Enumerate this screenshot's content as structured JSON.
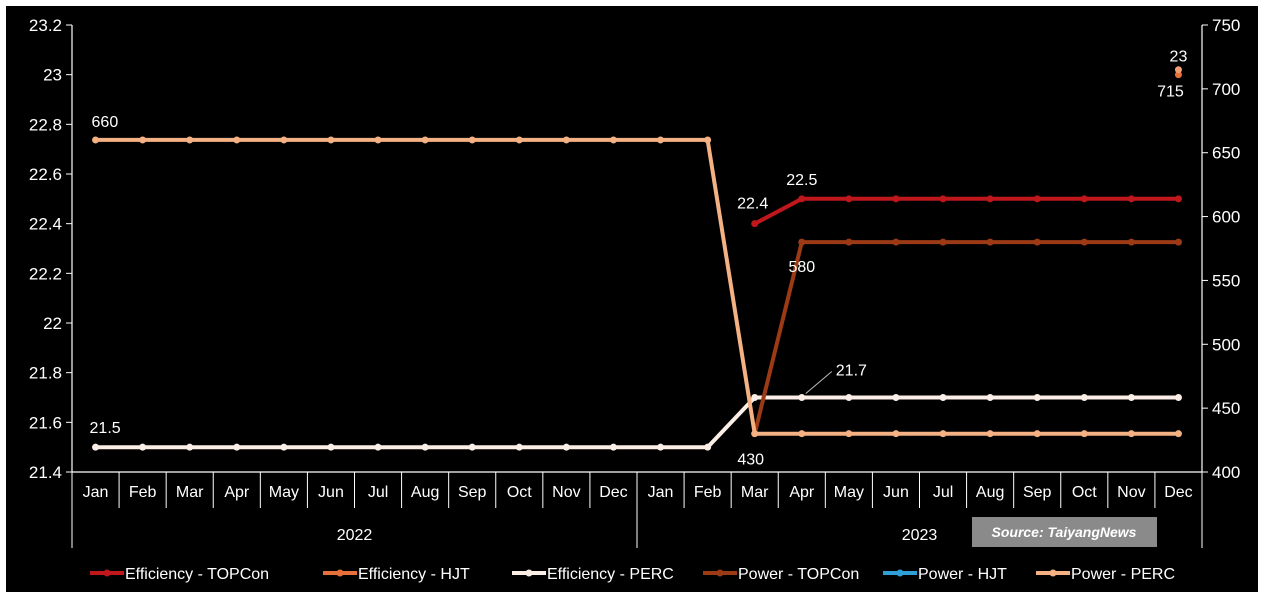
{
  "chart_data": {
    "type": "line",
    "categories": [
      "Jan",
      "Feb",
      "Mar",
      "Apr",
      "May",
      "Jun",
      "Jul",
      "Aug",
      "Sep",
      "Oct",
      "Nov",
      "Dec",
      "Jan",
      "Feb",
      "Mar",
      "Apr",
      "May",
      "Jun",
      "Jul",
      "Aug",
      "Sep",
      "Oct",
      "Nov",
      "Dec"
    ],
    "years": [
      {
        "label": "2022",
        "start": 0,
        "end": 11
      },
      {
        "label": "2023",
        "start": 12,
        "end": 23
      }
    ],
    "y_left": {
      "min": 21.4,
      "max": 23.2,
      "step": 0.2,
      "ticks": [
        "21.4",
        "21.6",
        "21.8",
        "22",
        "22.2",
        "22.4",
        "22.6",
        "22.8",
        "23",
        "23.2"
      ]
    },
    "y_right": {
      "min": 400,
      "max": 750,
      "step": 50,
      "ticks": [
        "400",
        "450",
        "500",
        "550",
        "600",
        "650",
        "700",
        "750"
      ]
    },
    "series": [
      {
        "name": "Efficiency - TOPCon",
        "axis": "left",
        "color": "#c0171c",
        "values": [
          null,
          null,
          null,
          null,
          null,
          null,
          null,
          null,
          null,
          null,
          null,
          null,
          null,
          null,
          22.4,
          22.5,
          22.5,
          22.5,
          22.5,
          22.5,
          22.5,
          22.5,
          22.5,
          22.5
        ]
      },
      {
        "name": "Efficiency - HJT",
        "axis": "left",
        "color": "#e8703a",
        "values": [
          null,
          null,
          null,
          null,
          null,
          null,
          null,
          null,
          null,
          null,
          null,
          null,
          null,
          null,
          null,
          null,
          null,
          null,
          null,
          null,
          null,
          null,
          null,
          23
        ]
      },
      {
        "name": "Efficiency - PERC",
        "axis": "left",
        "color": "#fbeee6",
        "values": [
          21.5,
          21.5,
          21.5,
          21.5,
          21.5,
          21.5,
          21.5,
          21.5,
          21.5,
          21.5,
          21.5,
          21.5,
          21.5,
          21.5,
          21.7,
          21.7,
          21.7,
          21.7,
          21.7,
          21.7,
          21.7,
          21.7,
          21.7,
          21.7
        ]
      },
      {
        "name": "Power - TOPCon",
        "axis": "right",
        "color": "#9c3a16",
        "values": [
          null,
          null,
          null,
          null,
          null,
          null,
          null,
          null,
          null,
          null,
          null,
          null,
          null,
          null,
          430,
          580,
          580,
          580,
          580,
          580,
          580,
          580,
          580,
          580
        ]
      },
      {
        "name": "Power - HJT",
        "axis": "right",
        "color": "#f0a070",
        "values": [
          null,
          null,
          null,
          null,
          null,
          null,
          null,
          null,
          null,
          null,
          null,
          null,
          null,
          null,
          null,
          null,
          null,
          null,
          null,
          null,
          null,
          null,
          null,
          715
        ]
      },
      {
        "name": "Power - PERC",
        "axis": "right",
        "color": "#f4b183",
        "values": [
          660,
          660,
          660,
          660,
          660,
          660,
          660,
          660,
          660,
          660,
          660,
          660,
          660,
          660,
          430,
          430,
          430,
          430,
          430,
          430,
          430,
          430,
          430,
          430
        ]
      }
    ],
    "data_labels": [
      {
        "series": "Power - PERC",
        "index": 0,
        "text": "660"
      },
      {
        "series": "Efficiency - PERC",
        "index": 0,
        "text": "21.5"
      },
      {
        "series": "Efficiency - TOPCon",
        "index": 14,
        "text": "22.4"
      },
      {
        "series": "Efficiency - TOPCon",
        "index": 15,
        "text": "22.5"
      },
      {
        "series": "Power - TOPCon",
        "index": 15,
        "text": "580"
      },
      {
        "series": "Efficiency - PERC",
        "index": 15,
        "text": "21.7"
      },
      {
        "series": "Power - PERC",
        "index": 14,
        "text": "430"
      },
      {
        "series": "Efficiency - HJT",
        "index": 23,
        "text": "23"
      },
      {
        "series": "Power - HJT",
        "index": 23,
        "text": "715"
      }
    ],
    "legend_labels": [
      "Efficiency - TOPCon",
      "Efficiency - HJT",
      "Efficiency - PERC",
      "Power - TOPCon",
      "Power - HJT",
      "Power - PERC"
    ],
    "legend_swatch_colors": [
      "#c0171c",
      "#e8703a",
      "#fbeee6",
      "#9c3a16",
      "#2f9fd8",
      "#f4b183"
    ],
    "legend_position": "bottom",
    "grid": false,
    "background": "#000000",
    "source": "Source: TaiyangNews"
  }
}
